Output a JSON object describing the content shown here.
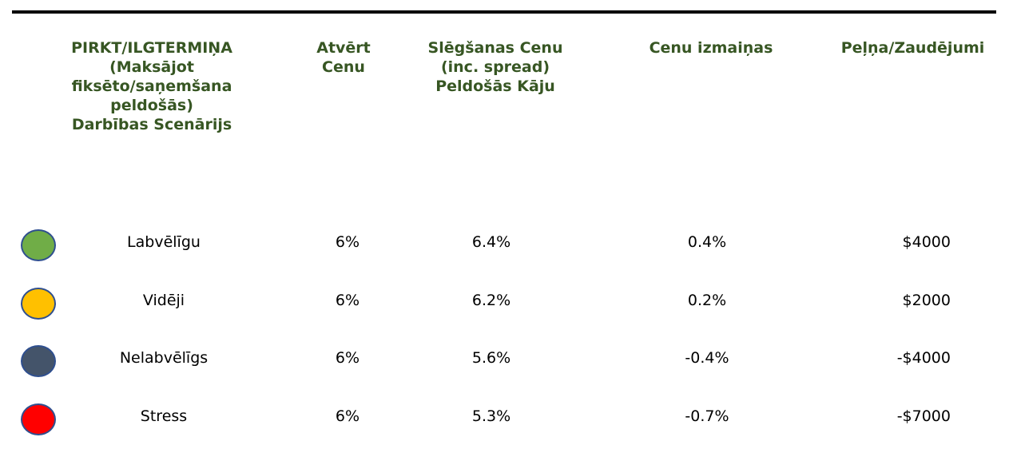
{
  "table": {
    "headers": [
      "PIRKT/ILGTERMIŅA\n(Maksājot\nfiksēto/saņemšana\npeldošās)\nDarbības Scenārijs",
      "Atvērt\nCenu",
      "Slēgšanas Cenu\n(inc. spread)\nPeldošās Kāju",
      "Cenu izmaiņas",
      "Peļņa/Zaudējumi"
    ],
    "rows": [
      [
        "Labvēlīgu",
        "6%",
        "6.4%",
        "0.4%",
        "$4000"
      ],
      [
        "Vidēji",
        "6%",
        "6.2%",
        "0.2%",
        "$2000"
      ],
      [
        "Nelabvēlīgs",
        "6%",
        "5.6%",
        "-0.4%",
        "-$4000"
      ],
      [
        "Stress",
        "6%",
        "5.3%",
        "-0.7%",
        "-$7000"
      ]
    ],
    "row_colors": [
      "#70ad47",
      "#ffc000",
      "#44546a",
      "#ff0000"
    ]
  }
}
